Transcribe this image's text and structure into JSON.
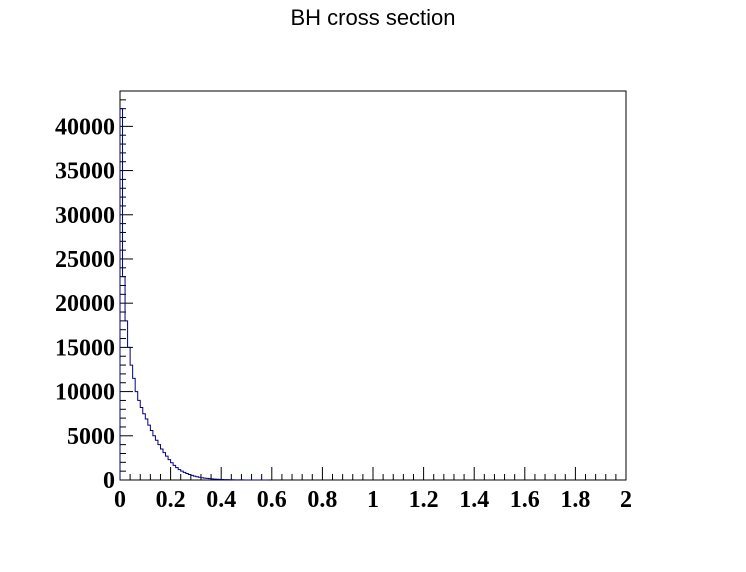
{
  "chart_data": {
    "type": "histogram",
    "title": "BH cross section",
    "xlabel": "",
    "ylabel": "",
    "xlim": [
      0,
      2
    ],
    "ylim": [
      0,
      44000
    ],
    "x_ticks": [
      {
        "value": 0,
        "label": "0"
      },
      {
        "value": 0.2,
        "label": "0.2"
      },
      {
        "value": 0.4,
        "label": "0.4"
      },
      {
        "value": 0.6,
        "label": "0.6"
      },
      {
        "value": 0.8,
        "label": "0.8"
      },
      {
        "value": 1,
        "label": "1"
      },
      {
        "value": 1.2,
        "label": "1.2"
      },
      {
        "value": 1.4,
        "label": "1.4"
      },
      {
        "value": 1.6,
        "label": "1.6"
      },
      {
        "value": 1.8,
        "label": "1.8"
      },
      {
        "value": 2,
        "label": "2"
      }
    ],
    "y_ticks": [
      {
        "value": 0,
        "label": "0"
      },
      {
        "value": 5000,
        "label": "5000"
      },
      {
        "value": 10000,
        "label": "10000"
      },
      {
        "value": 15000,
        "label": "15000"
      },
      {
        "value": 20000,
        "label": "20000"
      },
      {
        "value": 25000,
        "label": "25000"
      },
      {
        "value": 30000,
        "label": "30000"
      },
      {
        "value": 35000,
        "label": "35000"
      },
      {
        "value": 40000,
        "label": "40000"
      }
    ],
    "bins": {
      "low": 0,
      "width": 0.01,
      "values": [
        42000,
        23000,
        18000,
        15000,
        13000,
        11500,
        10000,
        9000,
        8200,
        7500,
        6900,
        6200,
        5600,
        5000,
        4500,
        4000,
        3500,
        3100,
        2700,
        2300,
        1950,
        1650,
        1400,
        1180,
        1000,
        860,
        730,
        620,
        520,
        440,
        370,
        310,
        260,
        215,
        180,
        150,
        125,
        103,
        85,
        70,
        57,
        46,
        37,
        30,
        24,
        19,
        15,
        12,
        9,
        7,
        5,
        4,
        3,
        2,
        2,
        1,
        1,
        1
      ]
    },
    "grid": false,
    "colors": {
      "line": "#00007f",
      "axis": "#000000",
      "background": "#ffffff"
    }
  }
}
